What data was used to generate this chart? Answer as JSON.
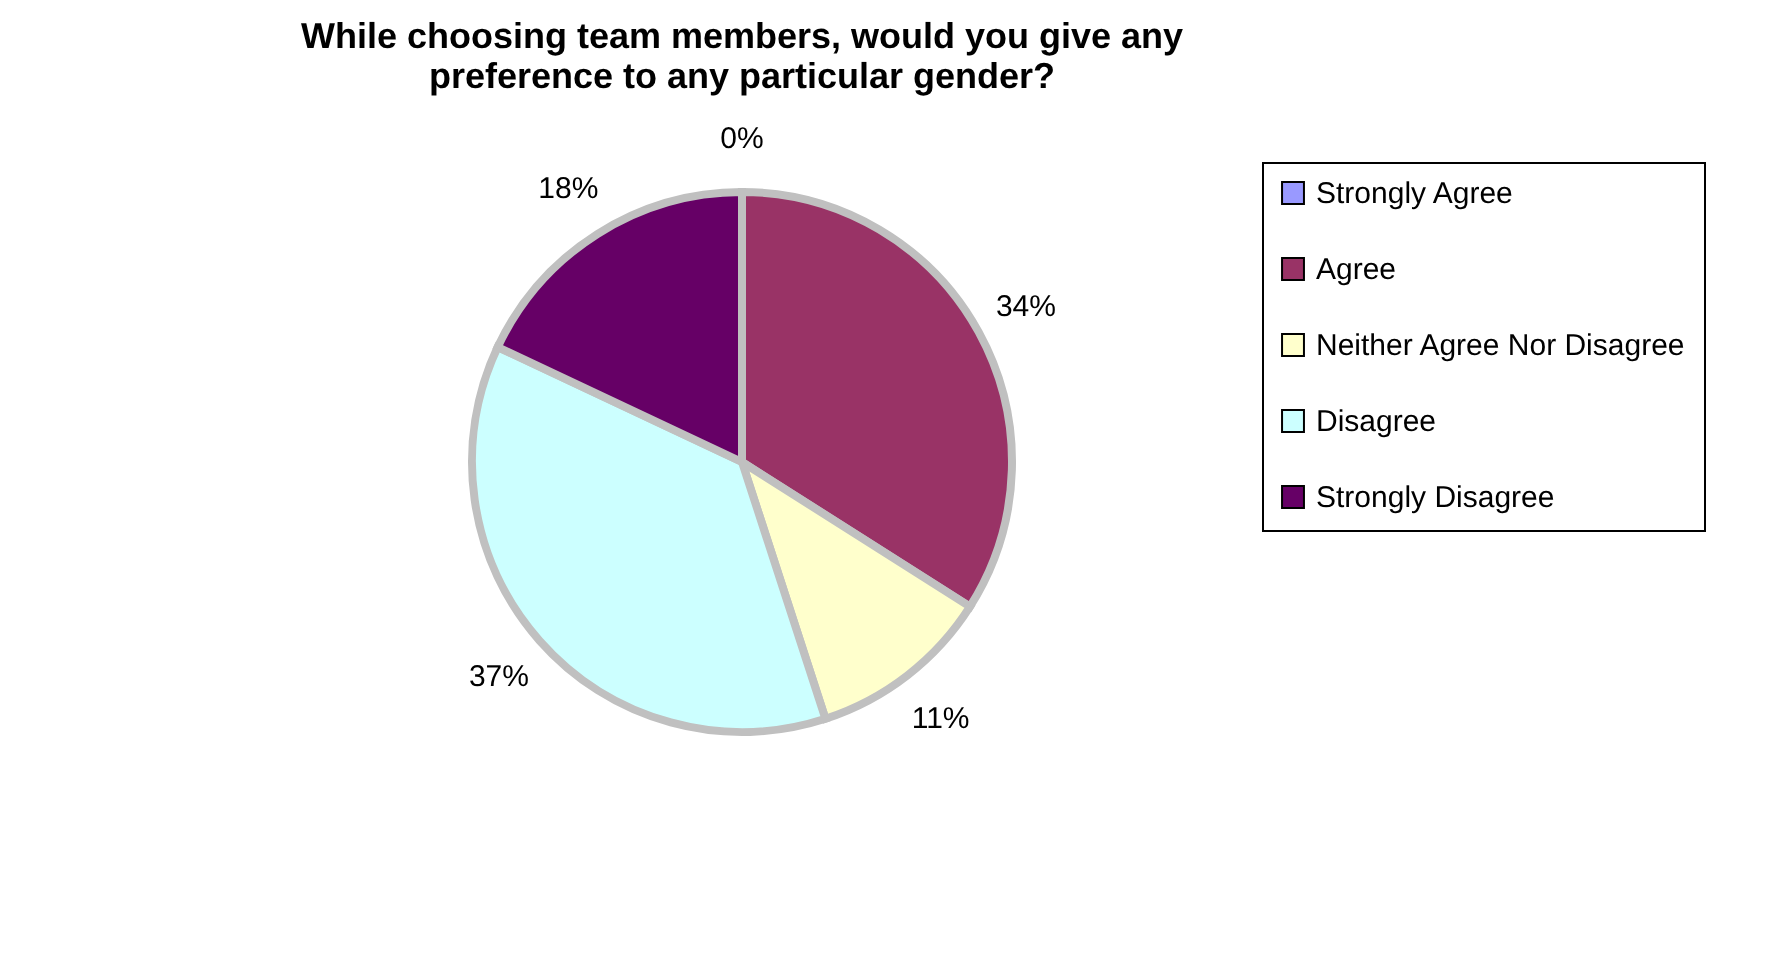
{
  "chart_data": {
    "type": "pie",
    "title": "While choosing team members, would you give any preference to any particular gender?",
    "categories": [
      "Strongly Agree",
      "Agree",
      "Neither Agree Nor Disagree",
      "Disagree",
      "Strongly Disagree"
    ],
    "values": [
      0,
      34,
      11,
      37,
      18
    ],
    "value_labels": [
      "0%",
      "34%",
      "11%",
      "37%",
      "18%"
    ],
    "colors": [
      "#9999ff",
      "#993366",
      "#ffffcc",
      "#ccffff",
      "#660066"
    ],
    "legend": "right"
  }
}
